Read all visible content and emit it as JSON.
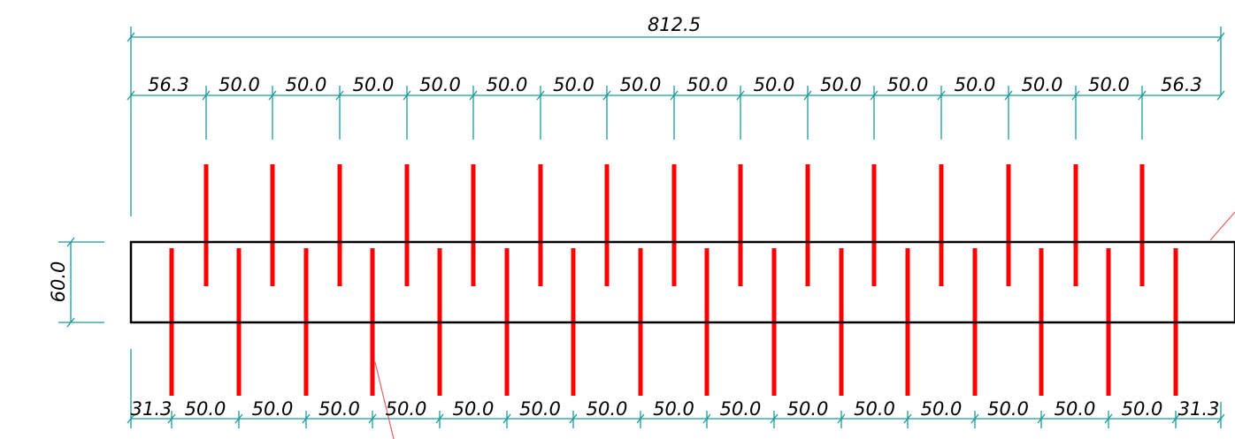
{
  "drawing": {
    "overall_dimension": "812.5",
    "height_dimension": "60.0",
    "top_dimensions": [
      "56.3",
      "50.0",
      "50.0",
      "50.0",
      "50.0",
      "50.0",
      "50.0",
      "50.0",
      "50.0",
      "50.0",
      "50.0",
      "50.0",
      "50.0",
      "50.0",
      "50.0",
      "56.3"
    ],
    "bottom_dimensions": [
      "31.3",
      "50.0",
      "50.0",
      "50.0",
      "50.0",
      "50.0",
      "50.0",
      "50.0",
      "50.0",
      "50.0",
      "50.0",
      "50.0",
      "50.0",
      "50.0",
      "50.0",
      "50.0",
      "31.3"
    ],
    "colors": {
      "dimension_line": "#1a9a9a",
      "bar": "#ff0000",
      "outline": "#000000",
      "leader": "#e06060"
    }
  }
}
